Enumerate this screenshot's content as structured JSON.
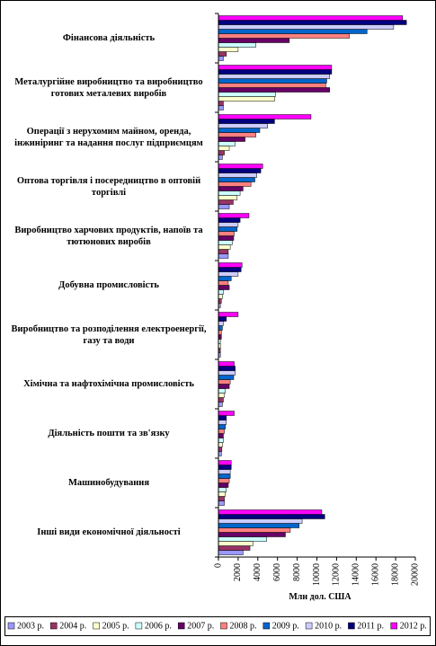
{
  "chart_data": {
    "type": "bar",
    "orientation": "horizontal",
    "x_axis_label": "Млн дол. США",
    "categories": [
      "Фінансова діяльність",
      "Металургійне виробництво та виробництво готових металевих виробів",
      "Операції з нерухомим майном, оренда, інжиніринг та надання послуг підприємцям",
      "Оптова торгівля і посередництво в оптовій торгівлі",
      "Виробництво харчових продуктів, напоїв та тютюнових виробів",
      "Добувна промисловість",
      "Виробництво та розподілення електроенергії, газу та води",
      "Хімічна та нафтохімічна промисловість",
      "Діяльність пошти та зв'язку",
      "Машинобудування",
      "Інші види економічної діяльності"
    ],
    "series": [
      {
        "name": "2003 р.",
        "color": "#9999ff",
        "values": [
          500,
          500,
          400,
          1100,
          1000,
          200,
          200,
          400,
          300,
          600,
          2500
        ]
      },
      {
        "name": "2004 р.",
        "color": "#993366",
        "values": [
          800,
          500,
          600,
          1500,
          1000,
          300,
          200,
          500,
          350,
          600,
          3200
        ]
      },
      {
        "name": "2005 р.",
        "color": "#ffffcc",
        "values": [
          2000,
          5700,
          1100,
          1900,
          1200,
          400,
          200,
          600,
          400,
          700,
          3500
        ]
      },
      {
        "name": "2006 р.",
        "color": "#ccffff",
        "values": [
          3800,
          5800,
          1700,
          2200,
          1400,
          500,
          200,
          700,
          500,
          800,
          4900
        ]
      },
      {
        "name": "2007 р.",
        "color": "#660066",
        "values": [
          7200,
          11300,
          2700,
          2500,
          1550,
          1100,
          300,
          1100,
          500,
          1000,
          6800
        ]
      },
      {
        "name": "2008 р.",
        "color": "#ff8080",
        "values": [
          13300,
          10900,
          3800,
          3300,
          1600,
          1000,
          300,
          1200,
          600,
          1100,
          7300
        ]
      },
      {
        "name": "2009 р.",
        "color": "#0066cc",
        "values": [
          15100,
          11000,
          4200,
          3700,
          1900,
          1300,
          400,
          1550,
          700,
          1200,
          8200
        ]
      },
      {
        "name": "2010 р.",
        "color": "#ccccff",
        "values": [
          17800,
          11300,
          5000,
          3900,
          2000,
          2000,
          500,
          1700,
          800,
          1200,
          8500
        ]
      },
      {
        "name": "2011 р.",
        "color": "#000080",
        "values": [
          19100,
          11500,
          5700,
          4300,
          2200,
          2300,
          800,
          1700,
          800,
          1300,
          10800
        ]
      },
      {
        "name": "2012 р.",
        "color": "#ff00ff",
        "values": [
          18700,
          11500,
          9400,
          4500,
          3100,
          2400,
          2000,
          1600,
          1600,
          1300,
          10500
        ]
      }
    ],
    "xlim": [
      0,
      20000
    ],
    "xticks": [
      0,
      2000,
      4000,
      6000,
      8000,
      10000,
      12000,
      14000,
      16000,
      18000,
      20000
    ]
  }
}
